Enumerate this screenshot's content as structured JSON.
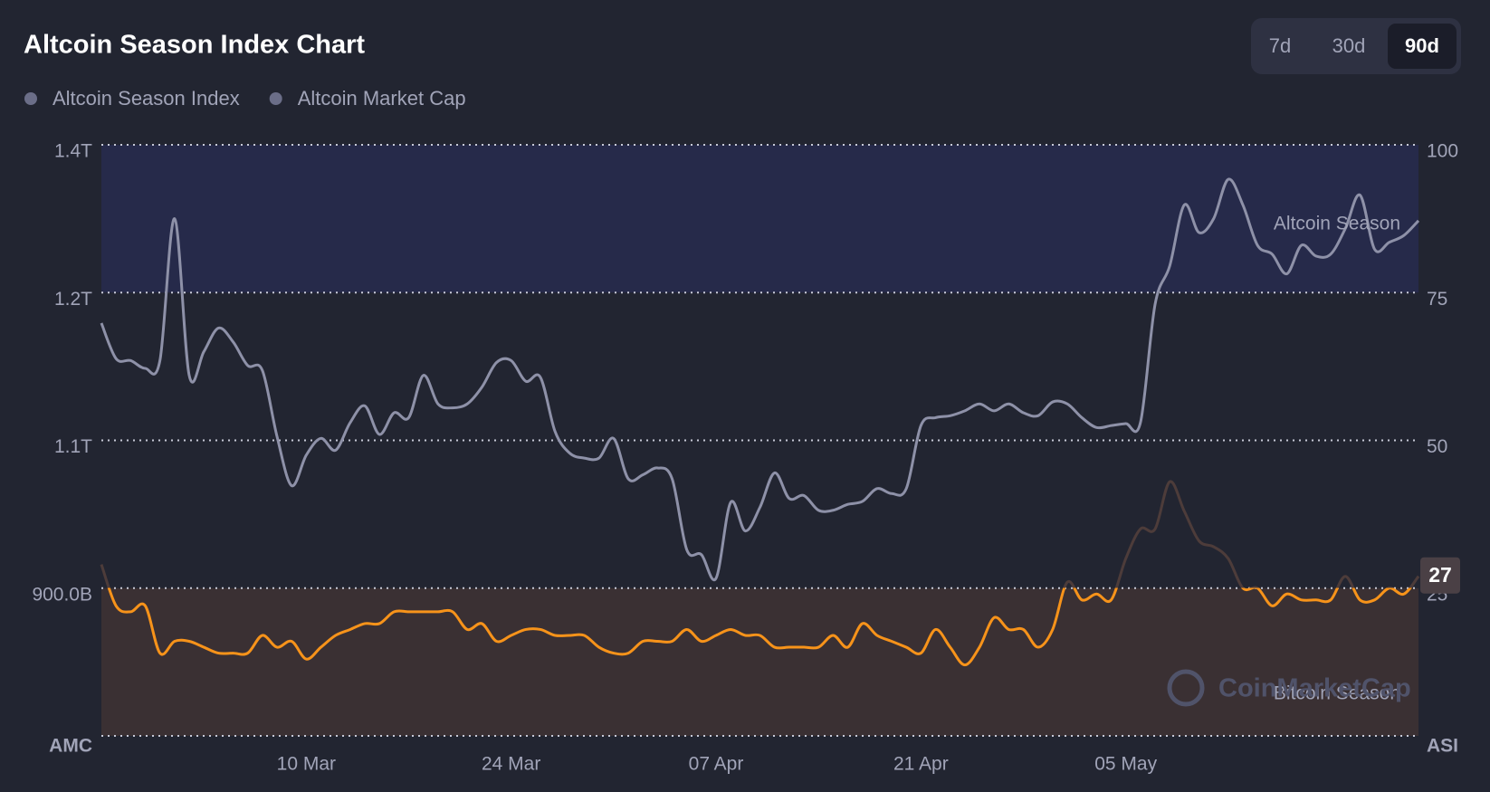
{
  "chart_data": {
    "type": "line",
    "title": "Altcoin Season Index Chart",
    "range_buttons": [
      "7d",
      "30d",
      "90d"
    ],
    "active_range_index": 2,
    "x": [
      null,
      null,
      null,
      null,
      null,
      null,
      null,
      null,
      null,
      null,
      null,
      null,
      null,
      null,
      "10 Mar",
      null,
      null,
      null,
      null,
      null,
      null,
      null,
      null,
      null,
      null,
      null,
      null,
      null,
      "24 Mar",
      null,
      null,
      null,
      null,
      null,
      null,
      null,
      null,
      null,
      null,
      null,
      null,
      null,
      "07 Apr",
      null,
      null,
      null,
      null,
      null,
      null,
      null,
      null,
      null,
      null,
      null,
      null,
      null,
      "21 Apr",
      null,
      null,
      null,
      null,
      null,
      null,
      null,
      null,
      null,
      null,
      null,
      null,
      null,
      "05 May",
      null,
      null,
      null,
      null,
      null,
      null,
      null,
      null,
      null,
      null,
      null,
      null,
      null,
      null,
      null,
      null,
      null,
      null,
      null,
      null
    ],
    "series": [
      {
        "name": "Altcoin Season Index",
        "color": "#f7931a",
        "upper_color": "#4d3c3a",
        "axis": "y2",
        "values": [
          29,
          22,
          21,
          22,
          14,
          16,
          16,
          15,
          14,
          14,
          14,
          17,
          15,
          16,
          13,
          15,
          17,
          18,
          19,
          19,
          21,
          21,
          21,
          21,
          21,
          18,
          19,
          16,
          17,
          18,
          18,
          17,
          17,
          17,
          15,
          14,
          14,
          16,
          16,
          16,
          18,
          16,
          17,
          18,
          17,
          17,
          15,
          15,
          15,
          15,
          17,
          15,
          19,
          17,
          16,
          15,
          14,
          18,
          15,
          12,
          15,
          20,
          18,
          18,
          15,
          18,
          26,
          23,
          24,
          23,
          30,
          35,
          35,
          43,
          38,
          33,
          32,
          30,
          25,
          25,
          22,
          24,
          23,
          23,
          23,
          27,
          23,
          23,
          25,
          24,
          27
        ]
      },
      {
        "name": "Altcoin Market Cap",
        "color": "#8e91a8",
        "values": [
          1169,
          1133,
          1131,
          1123,
          1131,
          1275,
          1116,
          1140,
          1164,
          1150,
          1126,
          1121,
          1054,
          1004,
          1035,
          1052,
          1040,
          1068,
          1085,
          1056,
          1078,
          1073,
          1116,
          1087,
          1083,
          1087,
          1104,
          1129,
          1131,
          1110,
          1114,
          1059,
          1037,
          1032,
          1032,
          1052,
          1011,
          1015,
          1022,
          1011,
          939,
          934,
          910,
          987,
          958,
          982,
          1017,
          991,
          994,
          979,
          979,
          985,
          988,
          1001,
          996,
          1001,
          1065,
          1073,
          1075,
          1080,
          1087,
          1080,
          1087,
          1078,
          1075,
          1089,
          1087,
          1073,
          1063,
          1065,
          1067,
          1068,
          1188,
          1227,
          1289,
          1261,
          1275,
          1315,
          1289,
          1248,
          1239,
          1219,
          1248,
          1237,
          1239,
          1265,
          1299,
          1244,
          1251,
          1258,
          1273
        ]
      }
    ],
    "legend_color": "#6b6e88",
    "ylabel": "AMC",
    "y2label": "ASI",
    "ylim": [
      750,
      1350
    ],
    "yticks": [
      {
        "value": 900,
        "label": "900.0B"
      },
      {
        "value": 1050,
        "label": "1.1T"
      },
      {
        "value": 1200,
        "label": "1.2T"
      },
      {
        "value": 1350,
        "label": "1.4T"
      }
    ],
    "y2lim": [
      0,
      100
    ],
    "y2ticks": [
      25,
      50,
      75,
      100
    ],
    "grid": true,
    "bands": [
      {
        "label": "Altcoin Season",
        "range": [
          75,
          100
        ],
        "color": "#262a4a"
      },
      {
        "label": "Bitcoin Season",
        "range": [
          0,
          25
        ],
        "color": "#3a3033"
      }
    ],
    "watermark": "CoinMarketCap"
  }
}
